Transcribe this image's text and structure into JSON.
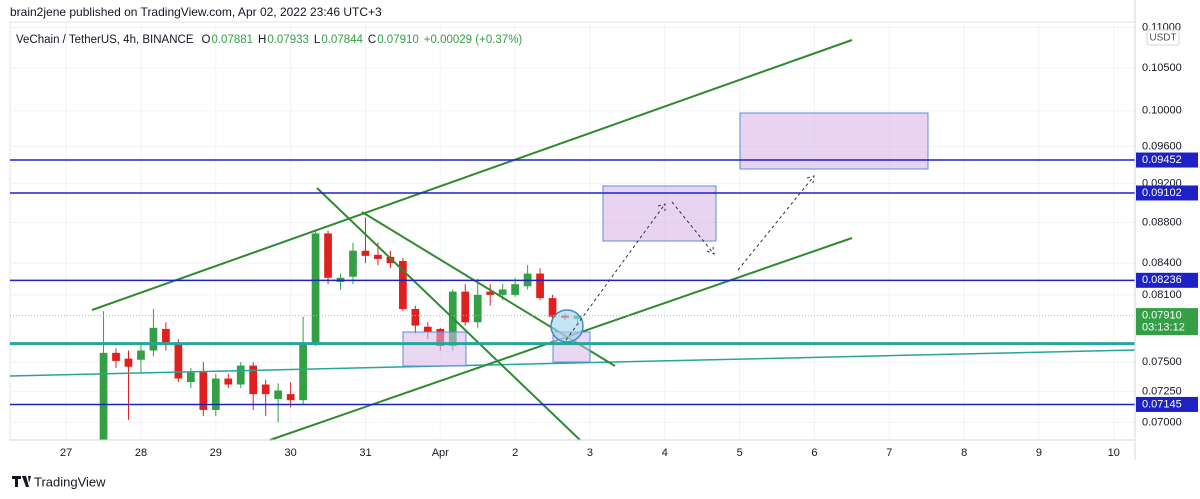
{
  "chart_data": {
    "type": "candlestick",
    "publisher": "brain2jene published on TradingView.com, Apr 02, 2022 23:46 UTC+3",
    "title": "VeChain / TetherUS, 4h, BINANCE",
    "ohlc_header": [
      {
        "key": "O",
        "text": "0.07881"
      },
      {
        "key": "H",
        "text": "0.07933"
      },
      {
        "key": "L",
        "text": "0.07844"
      },
      {
        "key": "C",
        "text": "0.07910"
      }
    ],
    "change": "+0.00029 (+0.37%)",
    "currency": "USDT",
    "brand": "TradingView",
    "x": [
      3,
      4,
      5,
      6,
      7,
      8,
      9,
      10,
      11,
      12,
      13,
      14,
      15,
      16,
      17,
      18,
      19,
      20,
      21,
      22,
      23,
      24,
      25,
      26,
      27,
      28,
      29,
      30,
      31,
      32,
      33,
      34,
      35,
      36,
      37,
      38,
      39,
      40,
      41
    ],
    "open": [
      0.0686,
      0.0758,
      0.0753,
      0.0752,
      0.076,
      0.0779,
      0.0767,
      0.0733,
      0.0742,
      0.071,
      0.0736,
      0.0731,
      0.0747,
      0.0731,
      0.0719,
      0.0723,
      0.0718,
      0.0767,
      0.0869,
      0.0822,
      0.0827,
      0.0852,
      0.0848,
      0.0846,
      0.0842,
      0.0797,
      0.0781,
      0.0779,
      0.0764,
      0.0813,
      0.0785,
      0.0813,
      0.081,
      0.081,
      0.0818,
      0.083,
      0.0807,
      0.0791,
      0.07881
    ],
    "high": [
      0.0795,
      0.0762,
      0.076,
      0.0765,
      0.0797,
      0.0785,
      0.077,
      0.0745,
      0.075,
      0.074,
      0.074,
      0.075,
      0.075,
      0.0735,
      0.0732,
      0.0733,
      0.079,
      0.0873,
      0.0872,
      0.083,
      0.086,
      0.0885,
      0.086,
      0.0852,
      0.0845,
      0.08,
      0.0785,
      0.078,
      0.0815,
      0.082,
      0.0825,
      0.082,
      0.082,
      0.0826,
      0.0838,
      0.0835,
      0.081,
      0.0793,
      0.07933
    ],
    "low": [
      0.0686,
      0.0745,
      0.0702,
      0.074,
      0.0755,
      0.076,
      0.0733,
      0.0728,
      0.0705,
      0.0705,
      0.0728,
      0.0728,
      0.071,
      0.0705,
      0.07,
      0.0712,
      0.0715,
      0.0764,
      0.082,
      0.0815,
      0.082,
      0.084,
      0.0838,
      0.0835,
      0.0795,
      0.0775,
      0.077,
      0.076,
      0.076,
      0.0782,
      0.078,
      0.08,
      0.0805,
      0.0808,
      0.0815,
      0.0805,
      0.0785,
      0.0787,
      0.07844
    ],
    "close": [
      0.0758,
      0.0751,
      0.0746,
      0.076,
      0.078,
      0.0767,
      0.0736,
      0.0741,
      0.071,
      0.0736,
      0.0731,
      0.0747,
      0.0723,
      0.0723,
      0.0726,
      0.0718,
      0.0767,
      0.0869,
      0.0826,
      0.0826,
      0.0852,
      0.0847,
      0.0844,
      0.084,
      0.0797,
      0.0782,
      0.0776,
      0.0764,
      0.0813,
      0.0785,
      0.081,
      0.081,
      0.0815,
      0.082,
      0.083,
      0.0807,
      0.079,
      0.0789,
      0.0791
    ],
    "up_color": "#34a046",
    "down_color": "#e0201f",
    "xlim": [
      -4.5,
      85.7
    ],
    "xticks": [
      {
        "value": 0,
        "label": "27"
      },
      {
        "value": 6,
        "label": "28"
      },
      {
        "value": 12,
        "label": "29"
      },
      {
        "value": 18,
        "label": "30"
      },
      {
        "value": 24,
        "label": "31"
      },
      {
        "value": 30,
        "label": "Apr"
      },
      {
        "value": 36,
        "label": "2"
      },
      {
        "value": 42,
        "label": "3"
      },
      {
        "value": 48,
        "label": "4"
      },
      {
        "value": 54,
        "label": "5"
      },
      {
        "value": 60,
        "label": "6"
      },
      {
        "value": 66,
        "label": "7"
      },
      {
        "value": 72,
        "label": "8"
      },
      {
        "value": 78,
        "label": "9"
      },
      {
        "value": 84,
        "label": "10"
      }
    ],
    "ylim": [
      0.0686,
      0.1107
    ],
    "log_scale": true,
    "grid": true,
    "yticks": [
      {
        "value": 0.11,
        "label": "0.11000"
      },
      {
        "value": 0.105,
        "label": "0.10500"
      },
      {
        "value": 0.1,
        "label": "0.10000"
      },
      {
        "value": 0.096,
        "label": "0.09600"
      },
      {
        "value": 0.092,
        "label": "0.09200"
      },
      {
        "value": 0.088,
        "label": "0.08800"
      },
      {
        "value": 0.084,
        "label": "0.08400"
      },
      {
        "value": 0.081,
        "label": "0.08100"
      },
      {
        "value": 0.075,
        "label": "0.07500"
      },
      {
        "value": 0.0725,
        "label": "0.07250"
      },
      {
        "value": 0.07,
        "label": "0.07000"
      }
    ],
    "levels": [
      {
        "value": 0.09452,
        "label": "0.09452"
      },
      {
        "value": 0.09102,
        "label": "0.09102"
      },
      {
        "value": 0.08236,
        "label": "0.08236"
      },
      {
        "value": 0.07145,
        "label": "0.07145"
      }
    ],
    "level_color": "#1e22c4",
    "support": {
      "value": 0.0766,
      "color": "#26a69a"
    },
    "last_price": {
      "value": 0.0791,
      "label": "0.07910"
    },
    "countdown": "03:13:12"
  }
}
